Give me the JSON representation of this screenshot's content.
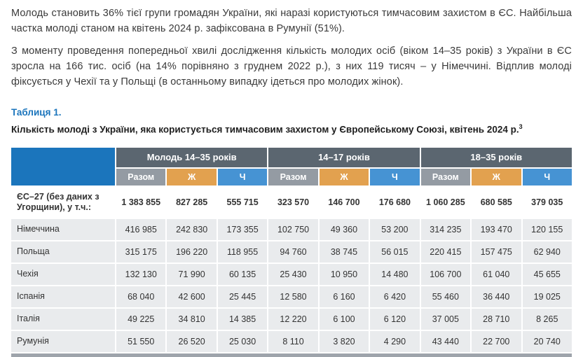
{
  "page": {
    "paragraphs": [
      "Молодь становить 36% тієї групи громадян України, які наразі користуються тимчасовим захистом в ЄС. Найбільша частка молоді станом на квітень 2024 р. зафіксована в Румунії (51%).",
      "З моменту проведення попередньої хвилі дослідження кількість молодих осіб (віком 14–35 років) з України в ЄС зросла на 166 тис. осіб (на 14% порівняно з груднем 2022 р.), з них 119 тисяч – у Німеччині. Відплив молоді фіксується у Чехії та у Польщі (в останньому випадку ідеться про молодих жінок)."
    ]
  },
  "table": {
    "label": "Таблиця 1.",
    "caption": "Кількість молоді з України, яка користується тимчасовим захистом у Європейському Союзі, квітень 2024 р.",
    "footnote_marker": "3",
    "groups": [
      "Молодь 14–35 років",
      "14–17 років",
      "18–35 років"
    ],
    "subheaders": [
      "Разом",
      "Ж",
      "Ч"
    ],
    "rows": [
      {
        "label": "ЄС–27 (без даних з Угорщини), у т.ч.:",
        "bold": true,
        "values": [
          "1 383 855",
          "827 285",
          "555 715",
          "323 570",
          "146 700",
          "176 680",
          "1 060 285",
          "680 585",
          "379 035"
        ]
      },
      {
        "label": "Німеччина",
        "bold": false,
        "values": [
          "416 985",
          "242 830",
          "173 355",
          "102 750",
          "49 360",
          "53 200",
          "314 235",
          "193 470",
          "120 155"
        ]
      },
      {
        "label": "Польща",
        "bold": false,
        "values": [
          "315 175",
          "196 220",
          "118 955",
          "94 760",
          "38 745",
          "56 015",
          "220 415",
          "157 475",
          "62 940"
        ]
      },
      {
        "label": "Чехія",
        "bold": false,
        "values": [
          "132 130",
          "71 990",
          "60 135",
          "25 430",
          "10 950",
          "14 480",
          "106 700",
          "61 040",
          "45 655"
        ]
      },
      {
        "label": "Іспанія",
        "bold": false,
        "values": [
          "68 040",
          "42 600",
          "25 445",
          "12 580",
          "6 160",
          "6 420",
          "55 460",
          "36 440",
          "19 025"
        ]
      },
      {
        "label": "Італія",
        "bold": false,
        "values": [
          "49 225",
          "34 810",
          "14 385",
          "12 220",
          "6 100",
          "6 120",
          "37 005",
          "28 710",
          "8 265"
        ]
      },
      {
        "label": "Румунія",
        "bold": false,
        "values": [
          "51 550",
          "26 520",
          "25 030",
          "8 110",
          "3 820",
          "4 290",
          "43 440",
          "22 700",
          "20 740"
        ]
      }
    ]
  },
  "colors": {
    "accent_blue": "#1b75bc",
    "group_header_slate": "#5b6670",
    "subheader_gray": "#949ba3",
    "subheader_orange": "#e2a14f",
    "subheader_blue": "#4693d3",
    "row_gray": "#e9ebed",
    "body_text": "#3a3a3a"
  }
}
